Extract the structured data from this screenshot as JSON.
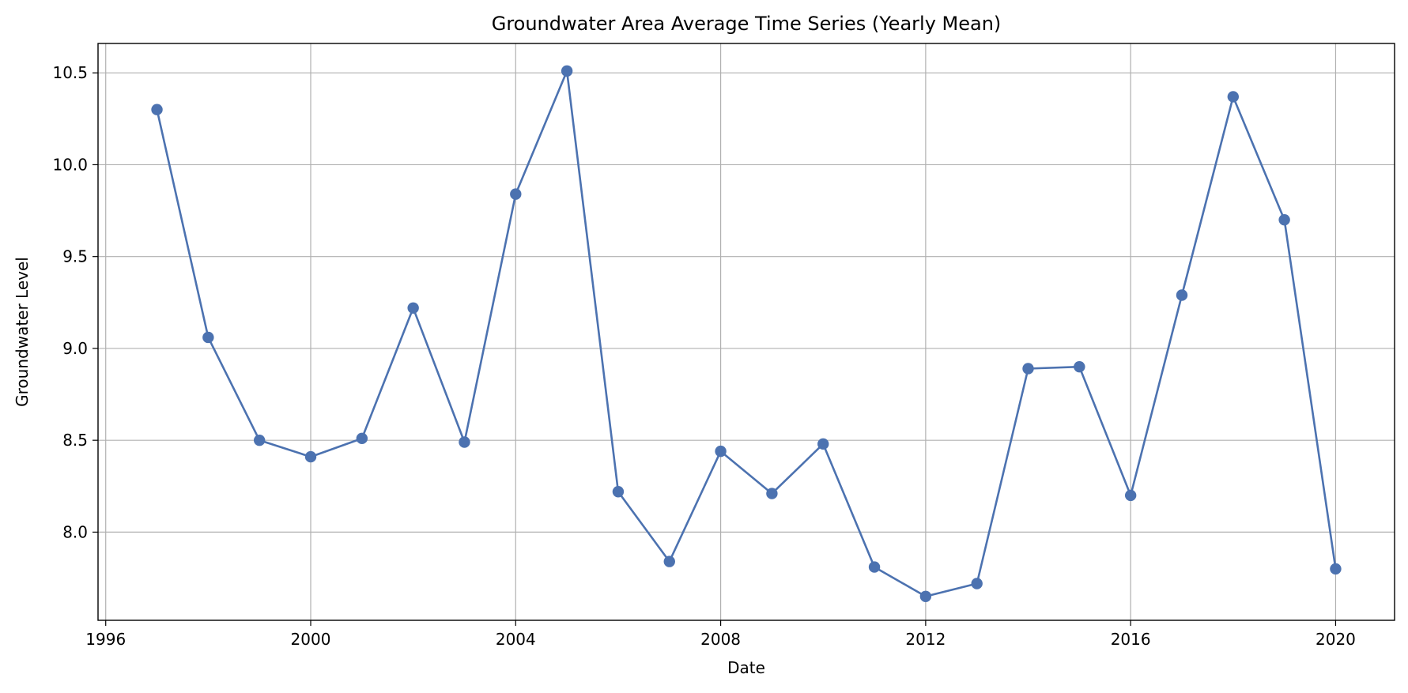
{
  "chart_data": {
    "type": "line",
    "title": "Groundwater Area Average Time Series (Yearly Mean)",
    "xlabel": "Date",
    "ylabel": "Groundwater Level",
    "xlim": [
      1995.85,
      2021.15
    ],
    "ylim": [
      7.52,
      10.66
    ],
    "grid": true,
    "x_ticks": [
      "1996",
      "2000",
      "2004",
      "2008",
      "2012",
      "2016",
      "2020"
    ],
    "y_ticks": [
      "8.0",
      "8.5",
      "9.0",
      "9.5",
      "10.0",
      "10.5"
    ],
    "series": [
      {
        "marker": "circle",
        "color": "#4c72b0",
        "points": [
          {
            "x": 1997,
            "y": 10.3
          },
          {
            "x": 1998,
            "y": 9.06
          },
          {
            "x": 1999,
            "y": 8.5
          },
          {
            "x": 2000,
            "y": 8.41
          },
          {
            "x": 2001,
            "y": 8.51
          },
          {
            "x": 2002,
            "y": 9.22
          },
          {
            "x": 2003,
            "y": 8.49
          },
          {
            "x": 2004,
            "y": 9.84
          },
          {
            "x": 2005,
            "y": 10.51
          },
          {
            "x": 2006,
            "y": 8.22
          },
          {
            "x": 2007,
            "y": 7.84
          },
          {
            "x": 2008,
            "y": 8.44
          },
          {
            "x": 2009,
            "y": 8.21
          },
          {
            "x": 2010,
            "y": 8.48
          },
          {
            "x": 2011,
            "y": 7.81
          },
          {
            "x": 2012,
            "y": 7.65
          },
          {
            "x": 2013,
            "y": 7.72
          },
          {
            "x": 2014,
            "y": 8.89
          },
          {
            "x": 2015,
            "y": 8.9
          },
          {
            "x": 2016,
            "y": 8.2
          },
          {
            "x": 2017,
            "y": 9.29
          },
          {
            "x": 2018,
            "y": 10.37
          },
          {
            "x": 2019,
            "y": 9.7
          },
          {
            "x": 2020,
            "y": 7.8
          }
        ]
      }
    ]
  }
}
